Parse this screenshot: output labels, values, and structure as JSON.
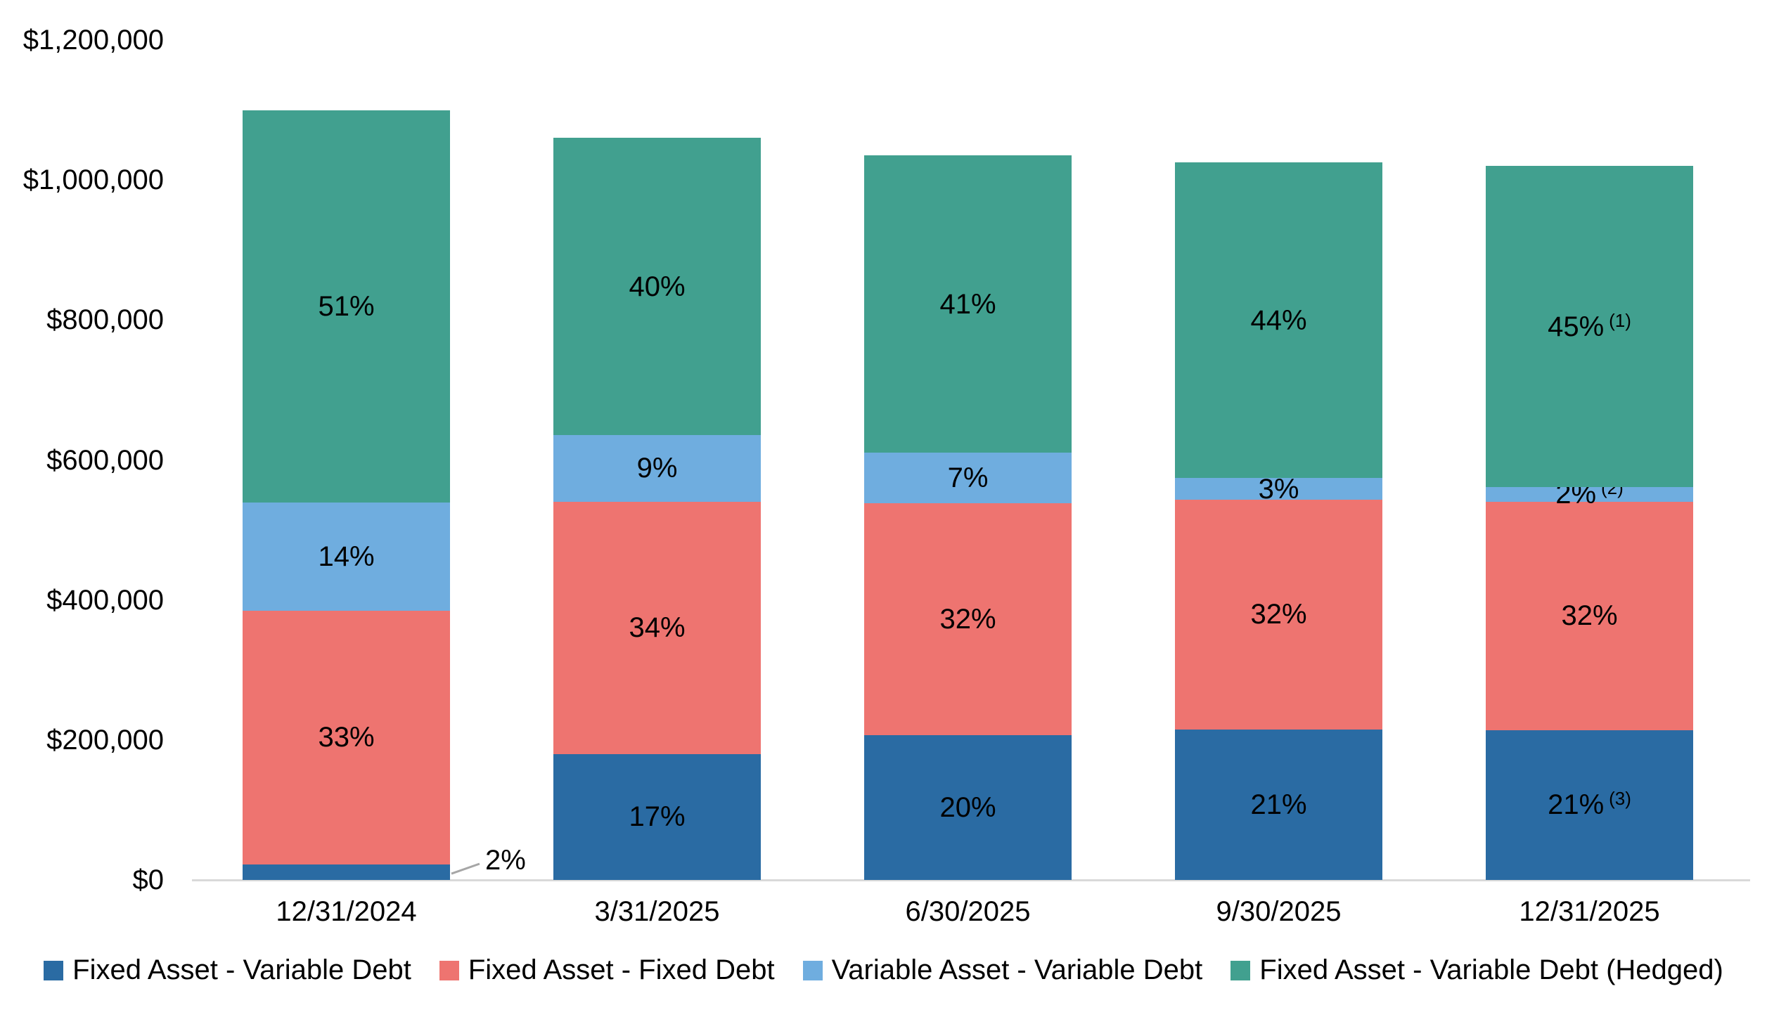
{
  "chart_data": {
    "type": "bar",
    "subtype": "stacked-column",
    "title": "",
    "categories": [
      "12/31/2024",
      "3/31/2025",
      "6/30/2025",
      "9/30/2025",
      "12/31/2025"
    ],
    "totals": [
      1100000,
      1060000,
      1035000,
      1025000,
      1020000
    ],
    "series": [
      {
        "name": "Fixed Asset - Variable Debt",
        "color": "#2A6BA3",
        "values": [
          22000,
          180200,
          207000,
          215250,
          214200
        ],
        "percent_labels": [
          "2%",
          "17%",
          "20%",
          "21%",
          "21%"
        ],
        "superscripts": [
          "",
          "",
          "",
          "",
          "(3)"
        ]
      },
      {
        "name": "Fixed Asset - Fixed Debt",
        "color": "#EE7470",
        "values": [
          363000,
          360400,
          331200,
          328000,
          326400
        ],
        "percent_labels": [
          "33%",
          "34%",
          "32%",
          "32%",
          "32%"
        ],
        "superscripts": [
          "",
          "",
          "",
          "",
          ""
        ]
      },
      {
        "name": "Variable Asset - Variable Debt",
        "color": "#6FADDF",
        "values": [
          154000,
          95400,
          72450,
          30750,
          20400
        ],
        "percent_labels": [
          "14%",
          "9%",
          "7%",
          "3%",
          "2%"
        ],
        "superscripts": [
          "",
          "",
          "",
          "",
          "(2)"
        ]
      },
      {
        "name": "Fixed Asset - Variable Debt (Hedged)",
        "color": "#41A08F",
        "values": [
          561000,
          424000,
          424350,
          451000,
          459000
        ],
        "percent_labels": [
          "51%",
          "40%",
          "41%",
          "44%",
          "45%"
        ],
        "superscripts": [
          "",
          "",
          "",
          "",
          "(1)"
        ]
      }
    ],
    "y_axis": {
      "min": 0,
      "max": 1200000,
      "tick_step": 200000,
      "tick_labels": [
        "$0",
        "$200,000",
        "$400,000",
        "$600,000",
        "$800,000",
        "$1,000,000",
        "$1,200,000"
      ]
    },
    "x_axis": {
      "line_color": "#D9D9D9"
    },
    "grid": false,
    "legend_position": "bottom",
    "callout": {
      "category_index": 0,
      "series_index": 0,
      "label": "2%",
      "line_color": "#A6A6A6"
    },
    "text_color": "#000000",
    "background_color": "#FFFFFF"
  }
}
